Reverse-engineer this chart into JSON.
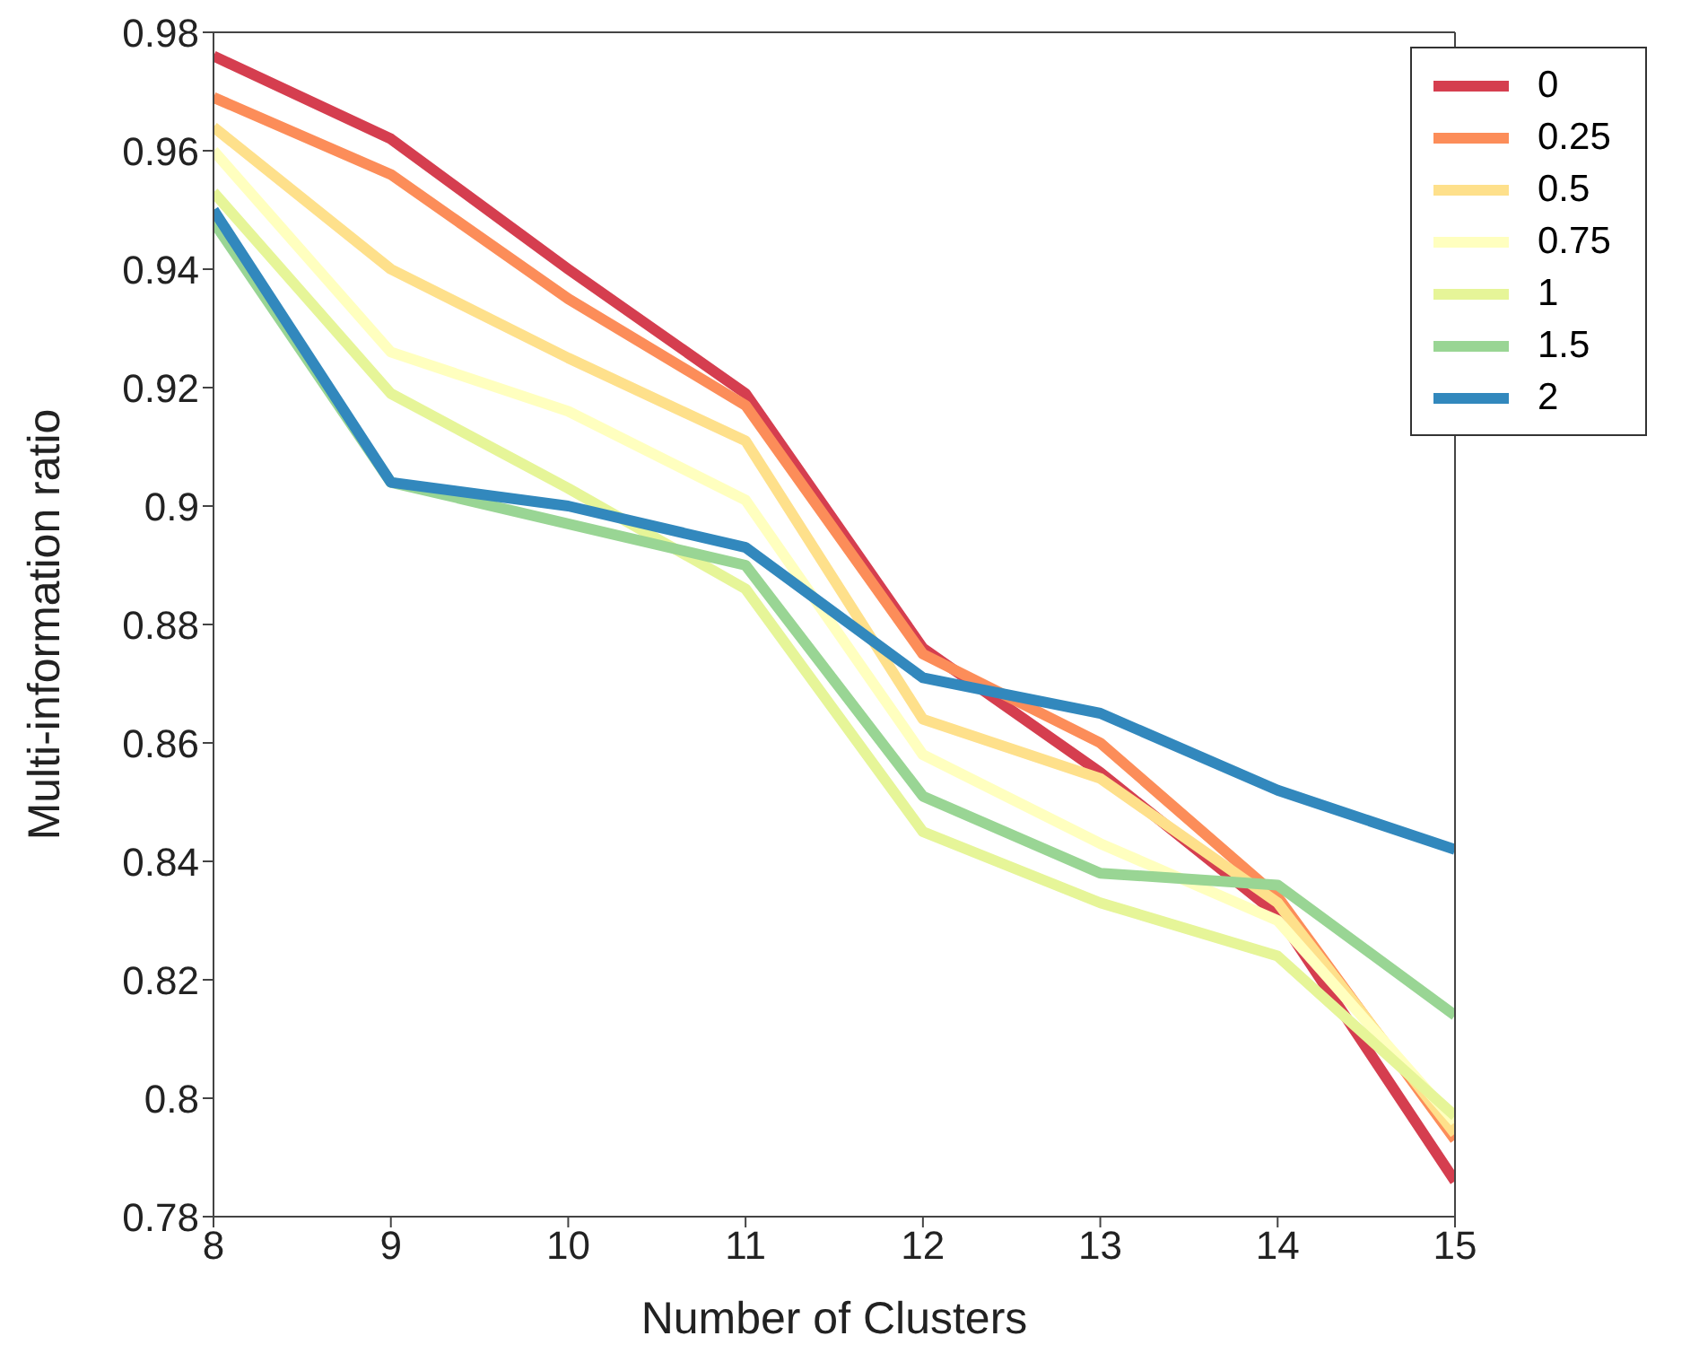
{
  "chart_data": {
    "type": "line",
    "xlabel": "Number of Clusters",
    "ylabel": "Multi-information ratio",
    "x": [
      8,
      9,
      10,
      11,
      12,
      13,
      14,
      15
    ],
    "xlim": [
      8,
      15
    ],
    "xticks": [
      8,
      9,
      10,
      11,
      12,
      13,
      14,
      15
    ],
    "ylim": [
      0.78,
      0.98
    ],
    "yticks": [
      0.78,
      0.8,
      0.82,
      0.84,
      0.86,
      0.88,
      0.9,
      0.92,
      0.94,
      0.96,
      0.98
    ],
    "grid": false,
    "legend": "top right",
    "marker": "none",
    "line_style": "solid",
    "series": [
      {
        "name": "0",
        "color": "#d53e4f",
        "values": [
          0.976,
          0.962,
          0.94,
          0.919,
          0.876,
          0.855,
          0.831,
          0.786
        ]
      },
      {
        "name": "0.25",
        "color": "#fc8d59",
        "values": [
          0.969,
          0.956,
          0.935,
          0.917,
          0.875,
          0.86,
          0.834,
          0.793
        ]
      },
      {
        "name": "0.5",
        "color": "#fee08b",
        "values": [
          0.964,
          0.94,
          0.925,
          0.911,
          0.864,
          0.854,
          0.833,
          0.794
        ]
      },
      {
        "name": "0.75",
        "color": "#ffffbf",
        "values": [
          0.96,
          0.926,
          0.916,
          0.901,
          0.858,
          0.843,
          0.83,
          0.796
        ]
      },
      {
        "name": "1",
        "color": "#e6f598",
        "values": [
          0.953,
          0.919,
          0.903,
          0.886,
          0.845,
          0.833,
          0.824,
          0.797
        ]
      },
      {
        "name": "1.5",
        "color": "#99d594",
        "values": [
          0.948,
          0.904,
          0.897,
          0.89,
          0.851,
          0.838,
          0.836,
          0.814
        ]
      },
      {
        "name": "2",
        "color": "#3288bd",
        "values": [
          0.95,
          0.904,
          0.9,
          0.893,
          0.871,
          0.865,
          0.852,
          0.842
        ]
      }
    ]
  }
}
